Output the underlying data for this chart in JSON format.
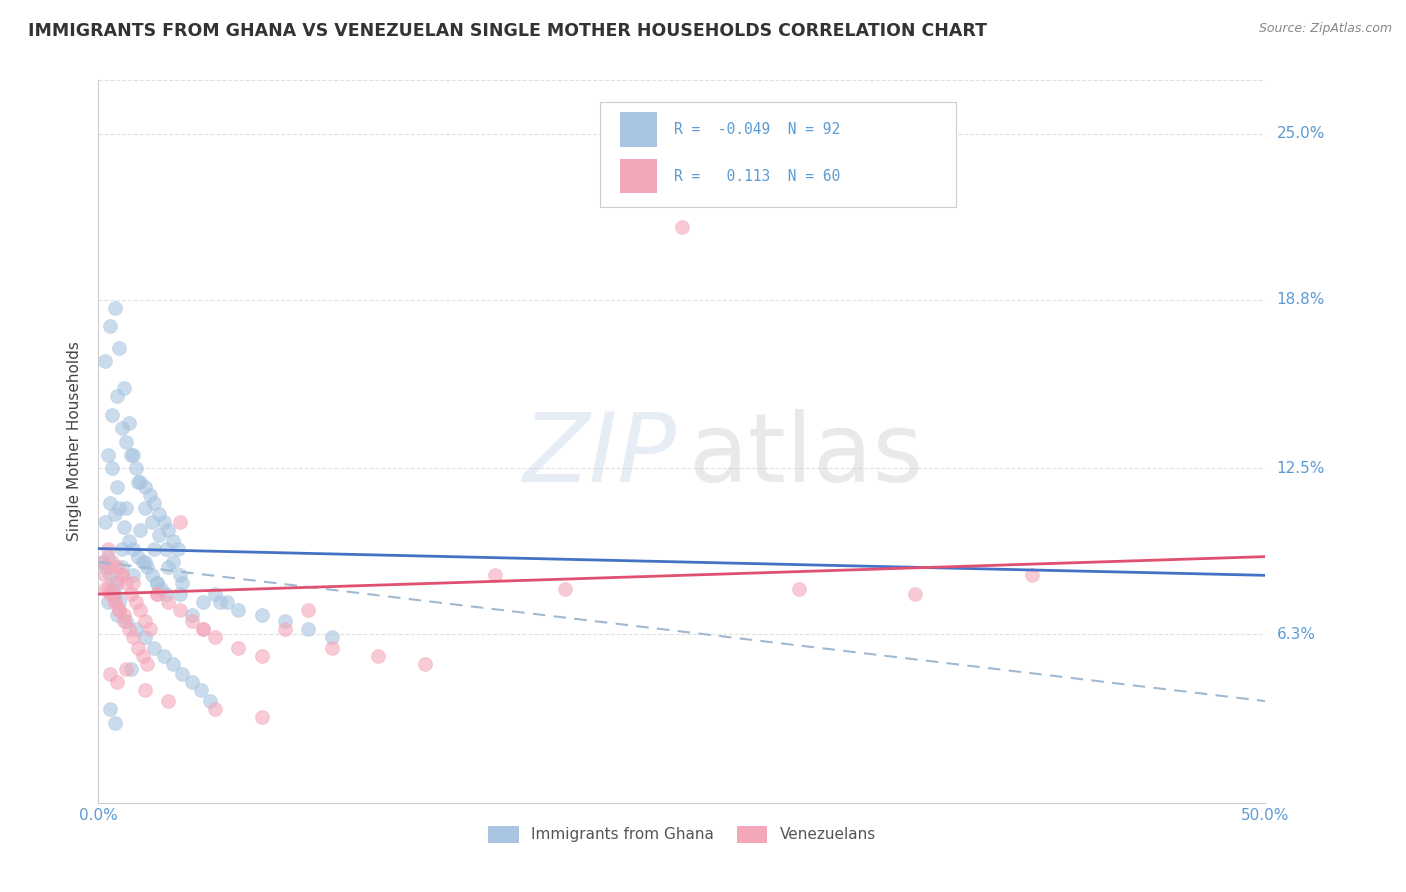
{
  "title": "IMMIGRANTS FROM GHANA VS VENEZUELAN SINGLE MOTHER HOUSEHOLDS CORRELATION CHART",
  "source": "Source: ZipAtlas.com",
  "ylabel": "Single Mother Households",
  "xlim": [
    0.0,
    50.0
  ],
  "ylim": [
    0.0,
    27.0
  ],
  "yticks": [
    6.3,
    12.5,
    18.8,
    25.0
  ],
  "ytick_labels": [
    "6.3%",
    "12.5%",
    "18.8%",
    "25.0%"
  ],
  "ghana_color": "#a8c4e0",
  "venezuela_color": "#f4a7b9",
  "ghana_R": -0.049,
  "ghana_N": 92,
  "venezuela_R": 0.113,
  "venezuela_N": 60,
  "ghana_line_start": 9.5,
  "ghana_line_end": 8.5,
  "venezuela_line_start": 7.8,
  "venezuela_line_end": 9.2,
  "dashed_line_start": 9.0,
  "dashed_line_end": 3.8,
  "ghana_scatter_x": [
    0.2,
    0.3,
    0.4,
    0.5,
    0.6,
    0.7,
    0.8,
    0.9,
    1.0,
    0.3,
    0.5,
    0.7,
    0.9,
    1.1,
    1.3,
    1.5,
    1.7,
    1.9,
    2.1,
    2.3,
    2.5,
    2.7,
    2.9,
    0.4,
    0.6,
    0.8,
    1.0,
    1.2,
    1.4,
    1.6,
    1.8,
    2.0,
    2.2,
    2.4,
    2.6,
    2.8,
    3.0,
    3.2,
    3.4,
    0.3,
    0.5,
    0.7,
    0.9,
    1.1,
    1.3,
    1.5,
    1.7,
    2.0,
    2.3,
    2.6,
    2.9,
    3.2,
    3.5,
    0.4,
    0.8,
    1.2,
    1.6,
    2.0,
    2.4,
    2.8,
    3.2,
    3.6,
    4.0,
    4.4,
    4.8,
    5.0,
    5.5,
    6.0,
    7.0,
    8.0,
    9.0,
    10.0,
    1.5,
    2.5,
    3.5,
    4.5,
    1.0,
    2.0,
    0.6,
    0.8,
    1.2,
    1.8,
    2.4,
    3.0,
    3.6,
    0.5,
    0.7,
    1.4,
    4.0,
    5.2
  ],
  "ghana_scatter_y": [
    9.0,
    8.8,
    9.2,
    8.5,
    8.0,
    7.8,
    8.3,
    7.5,
    8.8,
    10.5,
    11.2,
    10.8,
    11.0,
    10.3,
    9.8,
    9.5,
    9.2,
    9.0,
    8.8,
    8.5,
    8.2,
    8.0,
    7.8,
    13.0,
    14.5,
    15.2,
    14.0,
    13.5,
    13.0,
    12.5,
    12.0,
    11.8,
    11.5,
    11.2,
    10.8,
    10.5,
    10.2,
    9.8,
    9.5,
    16.5,
    17.8,
    18.5,
    17.0,
    15.5,
    14.2,
    13.0,
    12.0,
    11.0,
    10.5,
    10.0,
    9.5,
    9.0,
    8.5,
    7.5,
    7.0,
    6.8,
    6.5,
    6.2,
    5.8,
    5.5,
    5.2,
    4.8,
    4.5,
    4.2,
    3.8,
    7.8,
    7.5,
    7.2,
    7.0,
    6.8,
    6.5,
    6.2,
    8.5,
    8.2,
    7.8,
    7.5,
    9.5,
    9.0,
    12.5,
    11.8,
    11.0,
    10.2,
    9.5,
    8.8,
    8.2,
    3.5,
    3.0,
    5.0,
    7.0,
    7.5
  ],
  "venezuela_scatter_x": [
    0.2,
    0.3,
    0.4,
    0.5,
    0.6,
    0.7,
    0.8,
    0.9,
    1.0,
    1.1,
    0.3,
    0.5,
    0.7,
    0.9,
    1.1,
    1.3,
    1.5,
    1.7,
    1.9,
    2.1,
    0.4,
    0.6,
    0.8,
    1.0,
    1.2,
    1.4,
    1.6,
    1.8,
    2.0,
    2.2,
    2.5,
    3.0,
    3.5,
    4.0,
    4.5,
    5.0,
    6.0,
    7.0,
    8.0,
    10.0,
    12.0,
    14.0,
    17.0,
    20.0,
    25.0,
    30.0,
    35.0,
    40.0,
    1.5,
    2.5,
    3.5,
    4.5,
    0.5,
    0.8,
    1.2,
    2.0,
    3.0,
    5.0,
    7.0,
    9.0
  ],
  "venezuela_scatter_y": [
    9.0,
    8.5,
    8.0,
    8.8,
    7.8,
    7.5,
    8.2,
    7.2,
    8.5,
    7.0,
    8.0,
    7.8,
    7.5,
    7.2,
    6.8,
    6.5,
    6.2,
    5.8,
    5.5,
    5.2,
    9.5,
    9.0,
    8.8,
    8.5,
    8.2,
    7.8,
    7.5,
    7.2,
    6.8,
    6.5,
    7.8,
    7.5,
    7.2,
    6.8,
    6.5,
    6.2,
    5.8,
    5.5,
    6.5,
    5.8,
    5.5,
    5.2,
    8.5,
    8.0,
    21.5,
    8.0,
    7.8,
    8.5,
    8.2,
    7.8,
    10.5,
    6.5,
    4.8,
    4.5,
    5.0,
    4.2,
    3.8,
    3.5,
    3.2,
    7.2
  ],
  "background_color": "#ffffff",
  "grid_color": "#cccccc",
  "title_color": "#333333",
  "tick_label_color": "#5b9bd5"
}
